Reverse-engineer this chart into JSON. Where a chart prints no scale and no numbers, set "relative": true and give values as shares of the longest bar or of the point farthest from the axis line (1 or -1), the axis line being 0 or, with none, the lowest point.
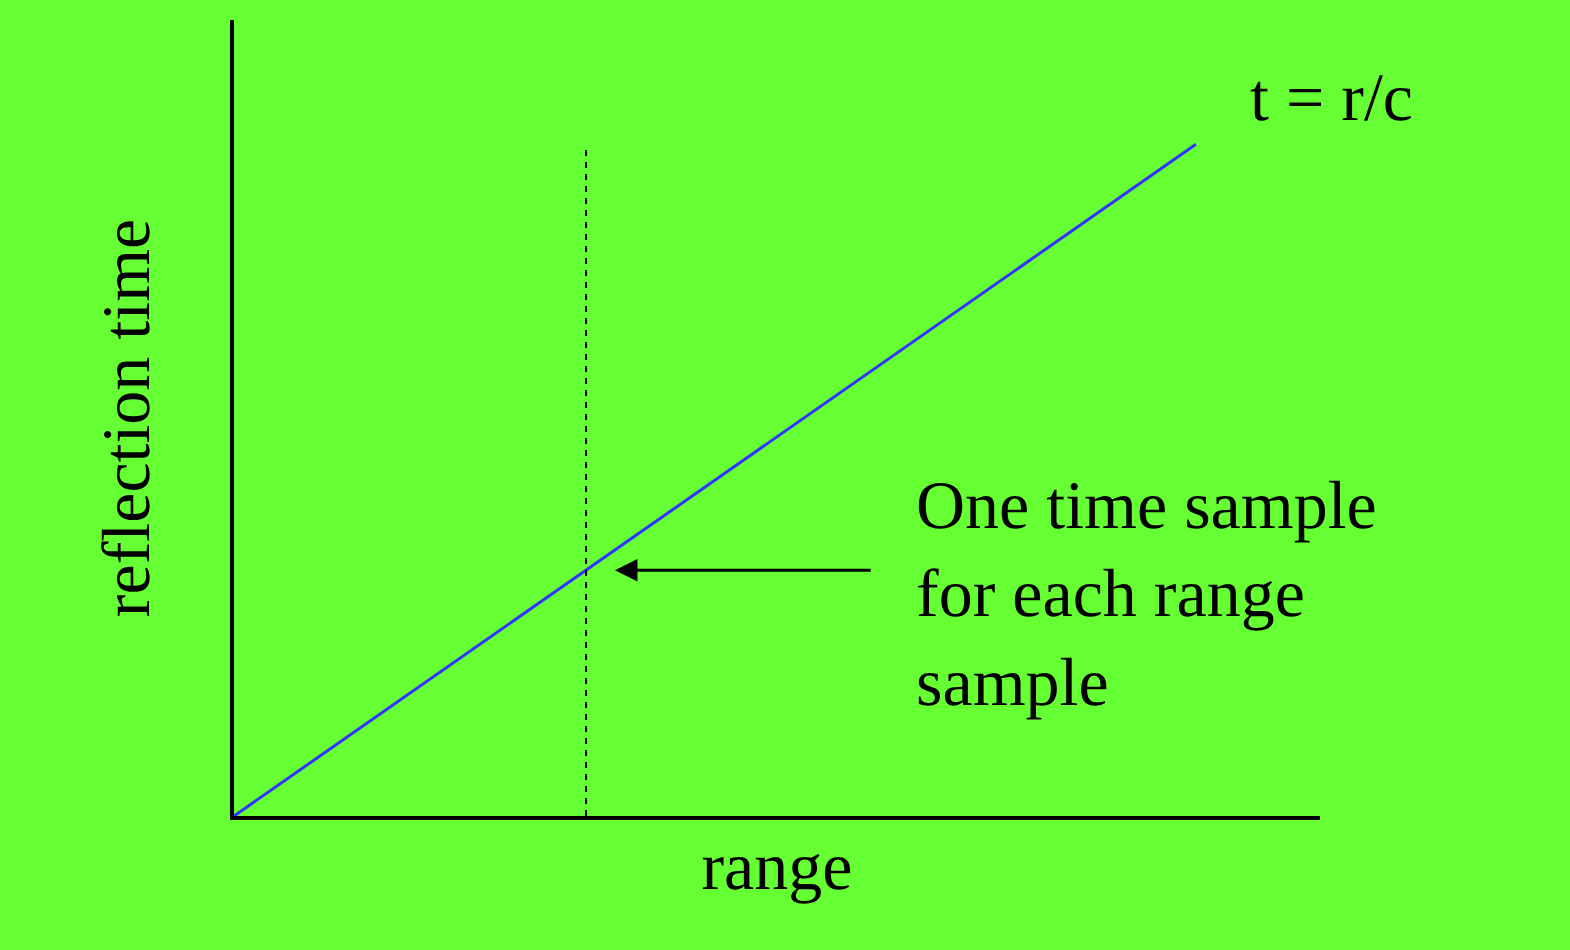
{
  "chart_data": {
    "type": "line",
    "relative": true,
    "xlabel": "range",
    "ylabel": "reflection time",
    "categories": [
      null,
      null
    ],
    "series": [
      {
        "color": "#3333ff",
        "values": [
          0,
          1
        ]
      }
    ],
    "annotations": [
      "t = r/c",
      "One time sample\nfor each range\nsample"
    ],
    "grid": false,
    "legend": false,
    "marker": "none",
    "line_style": "solid"
  }
}
